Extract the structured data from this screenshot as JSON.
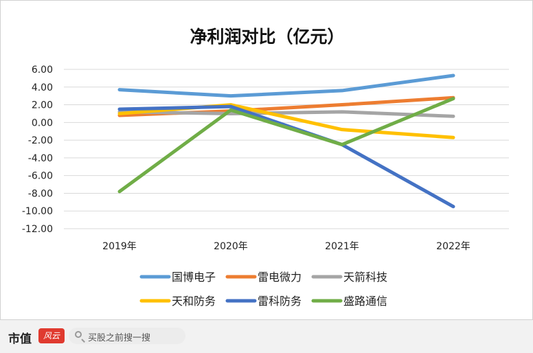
{
  "chart_data": {
    "type": "line",
    "title": "净利润对比（亿元）",
    "categories": [
      "2019年",
      "2020年",
      "2021年",
      "2022年"
    ],
    "yticks": [
      "6.00",
      "4.00",
      "2.00",
      "0.00",
      "-2.00",
      "-4.00",
      "-6.00",
      "-8.00",
      "-10.00",
      "-12.00"
    ],
    "ylim": [
      -12,
      6
    ],
    "grid": true,
    "legend_position": "bottom",
    "series": [
      {
        "name": "国博电子",
        "color": "#5b9bd5",
        "values": [
          3.7,
          3.0,
          3.6,
          5.3
        ]
      },
      {
        "name": "雷电微力",
        "color": "#ed7d31",
        "values": [
          0.8,
          1.3,
          2.0,
          2.8
        ]
      },
      {
        "name": "天箭科技",
        "color": "#a5a5a5",
        "values": [
          1.2,
          1.0,
          1.2,
          0.7
        ]
      },
      {
        "name": "天和防务",
        "color": "#ffc000",
        "values": [
          1.0,
          2.0,
          -0.8,
          -1.7
        ]
      },
      {
        "name": "雷科防务",
        "color": "#4472c4",
        "values": [
          1.5,
          1.8,
          -2.5,
          -9.5
        ]
      },
      {
        "name": "盛路通信",
        "color": "#70ad47",
        "values": [
          -7.8,
          1.4,
          -2.5,
          2.7
        ]
      }
    ]
  },
  "footer": {
    "brand": "市值",
    "badge": "风云",
    "search_text": "买股之前搜一搜"
  }
}
